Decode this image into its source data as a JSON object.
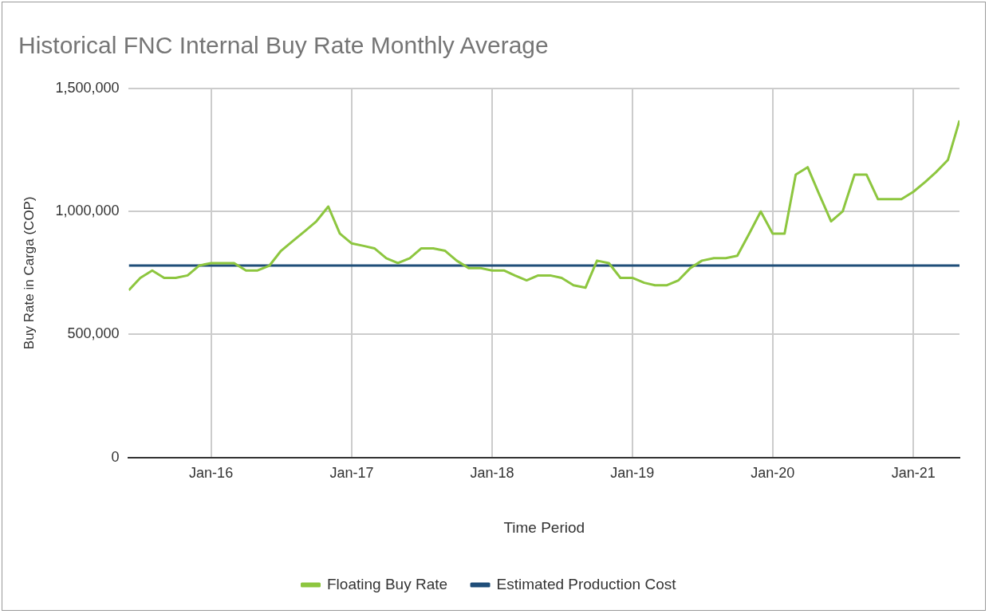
{
  "chart_data": {
    "type": "line",
    "title": "Historical FNC Internal Buy Rate Monthly Average",
    "xlabel": "Time Period",
    "ylabel": "Buy Rate in Carga (COP)",
    "x": [
      "2015-06",
      "2015-07",
      "2015-08",
      "2015-09",
      "2015-10",
      "2015-11",
      "2015-12",
      "2016-01",
      "2016-02",
      "2016-03",
      "2016-04",
      "2016-05",
      "2016-06",
      "2016-07",
      "2016-08",
      "2016-09",
      "2016-10",
      "2016-11",
      "2016-12",
      "2017-01",
      "2017-02",
      "2017-03",
      "2017-04",
      "2017-05",
      "2017-06",
      "2017-07",
      "2017-08",
      "2017-09",
      "2017-10",
      "2017-11",
      "2017-12",
      "2018-01",
      "2018-02",
      "2018-03",
      "2018-04",
      "2018-05",
      "2018-06",
      "2018-07",
      "2018-08",
      "2018-09",
      "2018-10",
      "2018-11",
      "2018-12",
      "2019-01",
      "2019-02",
      "2019-03",
      "2019-04",
      "2019-05",
      "2019-06",
      "2019-07",
      "2019-08",
      "2019-09",
      "2019-10",
      "2019-11",
      "2019-12",
      "2020-01",
      "2020-02",
      "2020-03",
      "2020-04",
      "2020-05",
      "2020-06",
      "2020-07",
      "2020-08",
      "2020-09",
      "2020-10",
      "2020-11",
      "2020-12",
      "2021-01",
      "2021-02",
      "2021-03",
      "2021-04",
      "2021-05"
    ],
    "series": [
      {
        "name": "Floating Buy Rate",
        "color": "#8dc63f",
        "values": [
          680000,
          730000,
          760000,
          730000,
          730000,
          740000,
          780000,
          790000,
          790000,
          790000,
          760000,
          760000,
          780000,
          840000,
          880000,
          920000,
          960000,
          1020000,
          910000,
          870000,
          860000,
          850000,
          810000,
          790000,
          810000,
          850000,
          850000,
          840000,
          800000,
          770000,
          770000,
          760000,
          760000,
          740000,
          720000,
          740000,
          740000,
          730000,
          700000,
          690000,
          800000,
          790000,
          730000,
          730000,
          710000,
          700000,
          700000,
          720000,
          770000,
          800000,
          810000,
          810000,
          820000,
          910000,
          1000000,
          910000,
          910000,
          1150000,
          1180000,
          1070000,
          960000,
          1000000,
          1150000,
          1150000,
          1050000,
          1050000,
          1050000,
          1080000,
          1120000,
          1160000,
          1210000,
          1370000
        ]
      },
      {
        "name": "Estimated Production Cost",
        "color": "#1f4e79",
        "x": [
          "2015-06",
          "2021-05"
        ],
        "values": [
          780000,
          780000
        ]
      }
    ],
    "xlim": [
      "2015-06",
      "2021-05"
    ],
    "xticks": [
      {
        "value": "2016-01",
        "label": "Jan-16"
      },
      {
        "value": "2017-01",
        "label": "Jan-17"
      },
      {
        "value": "2018-01",
        "label": "Jan-18"
      },
      {
        "value": "2019-01",
        "label": "Jan-19"
      },
      {
        "value": "2020-01",
        "label": "Jan-20"
      },
      {
        "value": "2021-01",
        "label": "Jan-21"
      }
    ],
    "ylim": [
      0,
      1500000
    ],
    "yticks": [
      0,
      {
        "value": 500000,
        "label": "500,000"
      },
      {
        "value": 1000000,
        "label": "1,000,000"
      },
      {
        "value": 1500000,
        "label": "1,500,000"
      }
    ],
    "grid": true,
    "legend": "bottom",
    "marker": "none",
    "line_style": "solid"
  }
}
